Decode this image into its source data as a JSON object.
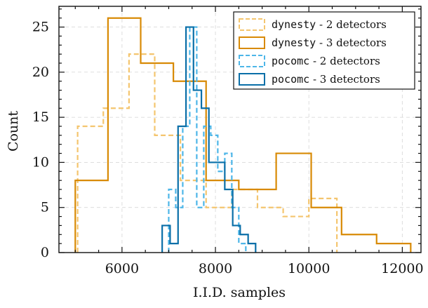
{
  "chart_data": {
    "type": "histogram",
    "xlabel": "I.I.D. samples",
    "ylabel": "Count",
    "xlim": [
      4650,
      12400
    ],
    "ylim": [
      0,
      27.3
    ],
    "xticks": [
      6000,
      8000,
      10000,
      12000
    ],
    "xtick_labels": [
      "6000",
      "8000",
      "10000",
      "12000"
    ],
    "yticks": [
      0,
      5,
      10,
      15,
      20,
      25
    ],
    "ytick_labels": [
      "0",
      "5",
      "10",
      "15",
      "20",
      "25"
    ],
    "grid": true,
    "legend_position": "top-right",
    "series": [
      {
        "name_code": "dynesty",
        "name_rest": " - 2 detectors",
        "color": "#f4c56e",
        "style": "dashed",
        "edges": [
          5050,
          5600,
          6150,
          6700,
          7250,
          7800,
          8350,
          8900,
          9450,
          10000,
          10600
        ],
        "counts": [
          14,
          16,
          22,
          13,
          8,
          5,
          7,
          5,
          4,
          6
        ]
      },
      {
        "name_code": "dynesty",
        "name_rest": " - 3 detectors",
        "color": "#d88a05",
        "style": "solid",
        "edges": [
          5000,
          5700,
          6400,
          7100,
          7800,
          8500,
          9300,
          10050,
          10700,
          11450,
          12180
        ],
        "counts": [
          8,
          26,
          21,
          19,
          8,
          7,
          11,
          5,
          2,
          1
        ]
      },
      {
        "name_code": "pocomc",
        "name_rest": " - 2 detectors",
        "color": "#4db6e8",
        "style": "dashed",
        "edges": [
          7000,
          7150,
          7300,
          7450,
          7600,
          7750,
          7900,
          8050,
          8200,
          8350,
          8500,
          8650
        ],
        "counts": [
          7,
          5,
          14,
          25,
          5,
          14,
          13,
          9,
          11,
          5,
          1
        ]
      },
      {
        "name_code": "pocomc",
        "name_rest": " - 3 detectors",
        "color": "#0a6fa8",
        "style": "solid",
        "edges": [
          6860,
          7030,
          7200,
          7370,
          7530,
          7700,
          7860,
          8030,
          8200,
          8370,
          8530,
          8700,
          8860
        ],
        "counts": [
          3,
          1,
          14,
          25,
          18,
          16,
          10,
          10,
          7,
          3,
          2,
          1
        ]
      }
    ]
  }
}
